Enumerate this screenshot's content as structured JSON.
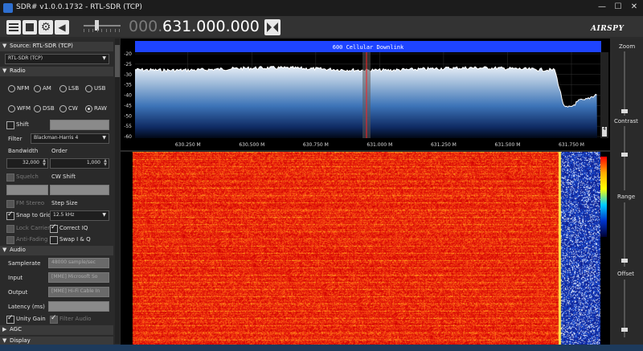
{
  "window": {
    "title": "SDR# v1.0.0.1732 - RTL-SDR (TCP)",
    "min": "—",
    "max": "☐",
    "close": "✕"
  },
  "toolbar": {
    "freq_dim": "000.",
    "freq_main": "631.000.000",
    "logo": "AIRSPY",
    "volume_level": 0.35
  },
  "left": {
    "source": {
      "header": "Source: RTL-SDR (TCP)",
      "device": "RTL-SDR (TCP)"
    },
    "radio": {
      "header": "Radio",
      "modes": [
        "NFM",
        "AM",
        "LSB",
        "USB",
        "WFM",
        "DSB",
        "CW",
        "RAW"
      ],
      "selected_mode": "RAW",
      "shift_label": "Shift",
      "filter_label": "Filter",
      "filter_value": "Blackman-Harris 4",
      "bandwidth_label": "Bandwidth",
      "bandwidth_value": "32,000",
      "order_label": "Order",
      "order_value": "1,000",
      "squelch_label": "Squelch",
      "cwshift_label": "CW Shift",
      "fmstereo_label": "FM Stereo",
      "stepsize_label": "Step Size",
      "snap_label": "Snap to Grid",
      "stepsize_value": "12.5 kHz",
      "lockcarrier_label": "Lock Carrier",
      "correctiq_label": "Correct IQ",
      "antifading_label": "Anti-Fading",
      "swapiq_label": "Swap I & Q"
    },
    "audio": {
      "header": "Audio",
      "samplerate_label": "Samplerate",
      "samplerate_value": "48000 sample/sec",
      "input_label": "Input",
      "input_value": "[MME] Microsoft So",
      "output_label": "Output",
      "output_value": "[MME] Hi-Fi Cable In",
      "latency_label": "Latency (ms)",
      "latency_value": "",
      "unity_label": "Unity Gain",
      "filteraudio_label": "Filter Audio"
    },
    "agc": {
      "header": "AGC"
    },
    "display": {
      "header": "Display"
    }
  },
  "spectrum": {
    "band_label": "600 Cellular Downlink",
    "y_ticks": [
      "-20",
      "-25",
      "-30",
      "-35",
      "-40",
      "-45",
      "-50",
      "-55",
      "-60"
    ],
    "x_ticks": [
      "630.250 M",
      "630.500 M",
      "630.750 M",
      "631.000 M",
      "631.250 M",
      "631.500 M",
      "631.750 M"
    ],
    "scroll_value": "4",
    "accent": "#1e44ff"
  },
  "right": {
    "zoom_label": "Zoom",
    "contrast_label": "Contrast",
    "range_label": "Range",
    "offset_label": "Offset"
  }
}
